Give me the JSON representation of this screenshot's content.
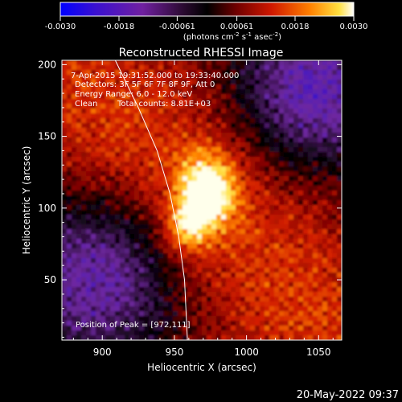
{
  "colorbar": {
    "min": -0.003,
    "max": 0.003,
    "ticks": [
      "-0.0030",
      "-0.0018",
      "-0.00061",
      "0.00061",
      "0.0018",
      "0.0030"
    ],
    "units_main": "(photons cm",
    "units_exp1": "-2",
    "units_mid": " s",
    "units_exp2": "-1",
    "units_end": " asec",
    "units_exp3": "-2",
    "units_close": ")"
  },
  "chart_data": {
    "type": "heatmap",
    "title": "Reconstructed RHESSI Image",
    "xlabel": "Heliocentric X (arcsec)",
    "ylabel": "Heliocentric Y (arcsec)",
    "xlim": [
      872,
      1066
    ],
    "ylim": [
      8,
      203
    ],
    "xticks": [
      900,
      950,
      1000,
      1050
    ],
    "yticks": [
      50,
      100,
      150,
      200
    ],
    "peak": [
      972,
      111
    ],
    "annotations": {
      "time": "7-Apr-2015 19:31:52.000 to 19:33:40.000",
      "detectors": "Detectors: 3F 5F 6F 7F 8F 9F, Att 0",
      "energy": "Energy Range: 6.0 - 12.0 keV",
      "clean_label": "Clean",
      "counts": "Total counts: 8.81E+03",
      "peak_label": "Position of Peak = [972,111]"
    },
    "colormap": [
      "#0000ff",
      "#6a1fb0",
      "#1a0a20",
      "#000000",
      "#6a0000",
      "#c81800",
      "#ff6a00",
      "#ffd040",
      "#ffffe0"
    ]
  },
  "footer": {
    "date": "20-May-2022 09:37"
  }
}
